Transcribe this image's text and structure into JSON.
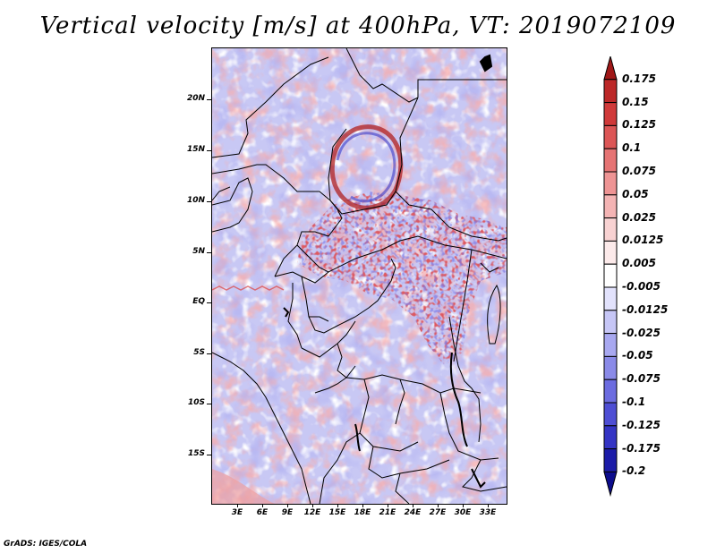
{
  "title": "Vertical velocity [m/s] at 400hPa, VT: 2019072109",
  "credit": "GrADS: IGES/COLA",
  "map": {
    "lat_labels": [
      "20N",
      "15N",
      "10N",
      "5N",
      "EQ",
      "5S",
      "10S",
      "15S"
    ],
    "lon_labels": [
      "3E",
      "6E",
      "9E",
      "12E",
      "15E",
      "18E",
      "21E",
      "24E",
      "27E",
      "30E",
      "33E"
    ]
  },
  "colorbar": {
    "labels": [
      "0.175",
      "0.15",
      "0.125",
      "0.1",
      "0.075",
      "0.05",
      "0.025",
      "0.0125",
      "0.005",
      "-0.005",
      "-0.0125",
      "-0.025",
      "-0.05",
      "-0.075",
      "-0.1",
      "-0.125",
      "-0.175",
      "-0.2"
    ],
    "colors": [
      "#a01818",
      "#bc2828",
      "#d03a3a",
      "#dc5656",
      "#e67474",
      "#ee9494",
      "#f4b4b4",
      "#f8d2d2",
      "#fceaea",
      "#ffffff",
      "#e2e2fc",
      "#c6c6f6",
      "#a8a8f0",
      "#8a8ae8",
      "#6c6ce0",
      "#4e4ed4",
      "#3434c4",
      "#1c1ca8",
      "#0c0c8c"
    ]
  }
}
